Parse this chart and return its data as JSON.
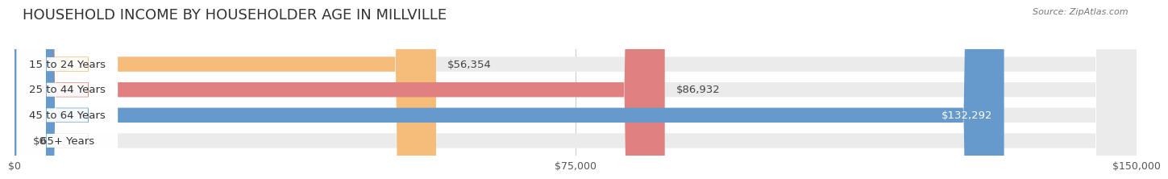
{
  "title": "HOUSEHOLD INCOME BY HOUSEHOLDER AGE IN MILLVILLE",
  "source": "Source: ZipAtlas.com",
  "categories": [
    "15 to 24 Years",
    "25 to 44 Years",
    "45 to 64 Years",
    "65+ Years"
  ],
  "values": [
    56354,
    86932,
    132292,
    0
  ],
  "bar_colors": [
    "#F5BC7A",
    "#E08080",
    "#6699CC",
    "#C9A8D4"
  ],
  "value_labels": [
    "$56,354",
    "$86,932",
    "$132,292",
    "$0"
  ],
  "xlim": [
    0,
    150000
  ],
  "xticks": [
    0,
    75000,
    150000
  ],
  "xtick_labels": [
    "$0",
    "$75,000",
    "$150,000"
  ],
  "bar_height": 0.58,
  "background_color": "#FFFFFF",
  "bar_bg_color": "#EBEBEB",
  "title_fontsize": 13,
  "label_fontsize": 9.5,
  "tick_fontsize": 9,
  "grid_color": "#CCCCCC"
}
